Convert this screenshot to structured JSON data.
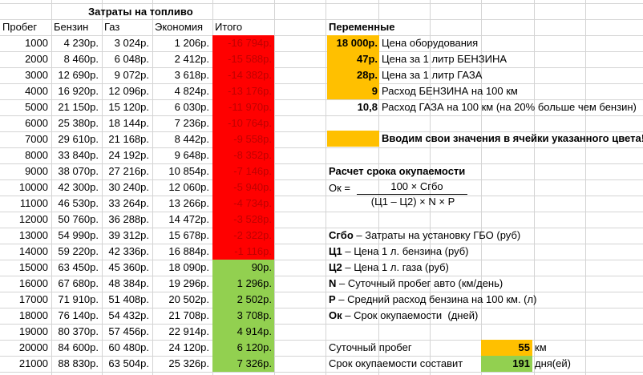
{
  "left_title": "Затраты на топливо",
  "headers": [
    "Пробег",
    "Бензин",
    "Газ",
    "Экономия",
    "Итого"
  ],
  "rows": [
    [
      "1000",
      "4 230р.",
      "3 024р.",
      "1 206р.",
      "-16 794р."
    ],
    [
      "2000",
      "8 460р.",
      "6 048р.",
      "2 412р.",
      "-15 588р."
    ],
    [
      "3000",
      "12 690р.",
      "9 072р.",
      "3 618р.",
      "-14 382р."
    ],
    [
      "4000",
      "16 920р.",
      "12 096р.",
      "4 824р.",
      "-13 176р."
    ],
    [
      "5000",
      "21 150р.",
      "15 120р.",
      "6 030р.",
      "-11 970р."
    ],
    [
      "6000",
      "25 380р.",
      "18 144р.",
      "7 236р.",
      "-10 764р."
    ],
    [
      "7000",
      "29 610р.",
      "21 168р.",
      "8 442р.",
      "-9 558р."
    ],
    [
      "8000",
      "33 840р.",
      "24 192р.",
      "9 648р.",
      "-8 352р."
    ],
    [
      "9000",
      "38 070р.",
      "27 216р.",
      "10 854р.",
      "-7 146р."
    ],
    [
      "10000",
      "42 300р.",
      "30 240р.",
      "12 060р.",
      "-5 940р."
    ],
    [
      "11000",
      "46 530р.",
      "33 264р.",
      "13 266р.",
      "-4 734р."
    ],
    [
      "12000",
      "50 760р.",
      "36 288р.",
      "14 472р.",
      "-3 528р."
    ],
    [
      "13000",
      "54 990р.",
      "39 312р.",
      "15 678р.",
      "-2 322р."
    ],
    [
      "14000",
      "59 220р.",
      "42 336р.",
      "16 884р.",
      "-1 116р."
    ],
    [
      "15000",
      "63 450р.",
      "45 360р.",
      "18 090р.",
      "90р."
    ],
    [
      "16000",
      "67 680р.",
      "48 384р.",
      "19 296р.",
      "1 296р."
    ],
    [
      "17000",
      "71 910р.",
      "51 408р.",
      "20 502р.",
      "2 502р."
    ],
    [
      "18000",
      "76 140р.",
      "54 432р.",
      "21 708р.",
      "3 708р."
    ],
    [
      "19000",
      "80 370р.",
      "57 456р.",
      "22 914р.",
      "4 914р."
    ],
    [
      "20000",
      "84 600р.",
      "60 480р.",
      "24 120р.",
      "6 120р."
    ],
    [
      "21000",
      "88 830р.",
      "63 504р.",
      "25 326р.",
      "7 326р."
    ]
  ],
  "variables": {
    "title": "Переменные",
    "items": [
      {
        "value": "18 000р.",
        "label": "Цена оборудования"
      },
      {
        "value": "47р.",
        "label": "Цена за 1 литр БЕНЗИНА"
      },
      {
        "value": "28р.",
        "label": "Цена за 1 литр ГАЗА"
      },
      {
        "value": "9",
        "label": "Расход БЕНЗИНА на 100 км"
      },
      {
        "value": "10,8",
        "label": "Расход ГАЗА на 100 км (на 20% больше чем бензин)"
      }
    ],
    "note": "Вводим свои значения в ячейки указанного цвета!"
  },
  "payback": {
    "title": "Расчет срока окупаемости",
    "formula_lhs": "Ок =",
    "formula_num": "100 × Сгбо",
    "formula_den": "(Ц1 – Ц2) × N × P",
    "legend": [
      {
        "key": "Сгбо",
        "text": " – Затраты на установку ГБО (руб)"
      },
      {
        "key": "Ц1",
        "text": " – Цена 1 л. бензина (руб)"
      },
      {
        "key": "Ц2",
        "text": " – Цена 1 л. газа (руб)"
      },
      {
        "key": "N",
        "text": " – Суточный пробег авто (км/день)"
      },
      {
        "key": "P",
        "text": " – Средний расход бензина на 100 км. (л)"
      },
      {
        "key": "Ок",
        "text": " – Срок окупаемости  (дней)"
      }
    ],
    "daily_label": "Суточный пробег",
    "daily_value": "55",
    "daily_unit": "км",
    "result_label": "Срок окупаемости составит",
    "result_value": "191",
    "result_unit": "дня(ей)"
  },
  "colors": {
    "negative_fill": "#ff0000",
    "positive_fill": "#92d050",
    "input_fill": "#ffc000",
    "result_fill": "#92d050",
    "negative_text": "#c00000"
  }
}
